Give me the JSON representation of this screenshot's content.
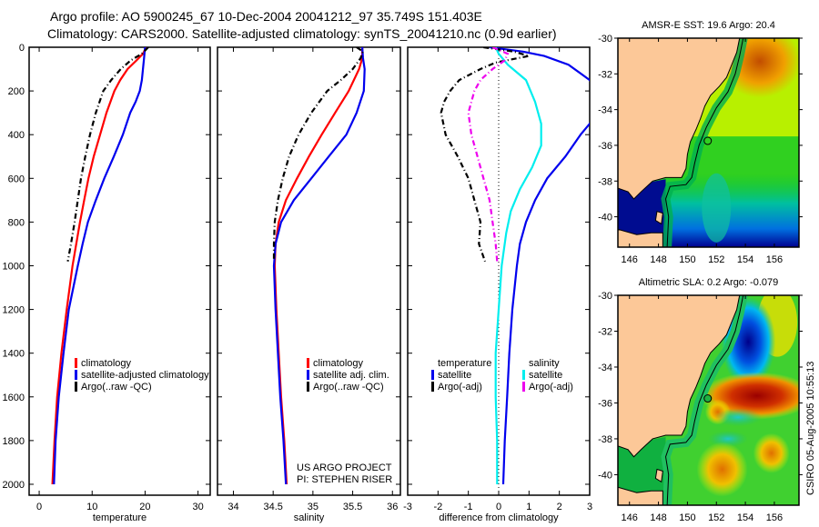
{
  "header": {
    "line1": "Argo profile: AO 5900245_67 10-Dec-2004 20041212_97 35.749S 151.403E",
    "line2": "Climatology: CARS2000. Satellite-adjusted climatology: synTS_20041210.nc (0.9d earlier)"
  },
  "footer_stamp": "CSIRO 05-Aug-2005 10:55:13",
  "colors": {
    "climatology": "#ff0000",
    "satellite": "#0000ee",
    "argo": "#000000",
    "salinity_satellite": "#00eeee",
    "salinity_argo": "#ee00ee"
  },
  "chart_data": [
    {
      "type": "line",
      "id": "temperature",
      "xlabel": "temperature",
      "ylabel": "",
      "xlim": [
        -1.9,
        32.3
      ],
      "ylim": [
        2050,
        0
      ],
      "xticks": [
        0,
        10,
        20,
        30
      ],
      "yticks": [
        0,
        200,
        400,
        600,
        800,
        1000,
        1200,
        1400,
        1600,
        1800,
        2000
      ],
      "legend": [
        "climatology",
        "satellite-adjusted climatology",
        "Argo(..raw -QC)"
      ],
      "series": [
        {
          "name": "climatology",
          "color": "#ff0000",
          "style": "solid",
          "depth": [
            0,
            30,
            60,
            100,
            150,
            200,
            300,
            400,
            500,
            600,
            700,
            800,
            900,
            1000,
            1200,
            1400,
            1600,
            1800,
            2000
          ],
          "values": [
            20.2,
            19.6,
            18.4,
            16.7,
            15.3,
            14.2,
            12.7,
            11.5,
            10.3,
            9.3,
            8.5,
            7.7,
            7.0,
            6.3,
            5.2,
            4.2,
            3.4,
            2.9,
            2.5
          ]
        },
        {
          "name": "satellite-adjusted climatology",
          "color": "#0000ee",
          "style": "solid",
          "depth": [
            0,
            50,
            100,
            150,
            200,
            250,
            300,
            400,
            500,
            600,
            700,
            800,
            900,
            1000,
            1200,
            1400,
            1600,
            1800,
            2000
          ],
          "values": [
            20.0,
            19.8,
            19.6,
            19.4,
            19.0,
            18.2,
            17.2,
            15.8,
            14.1,
            12.3,
            10.7,
            9.2,
            8.2,
            7.3,
            5.6,
            4.6,
            3.7,
            3.1,
            2.8
          ]
        },
        {
          "name": "Argo(..raw -QC)",
          "color": "#000000",
          "style": "dash",
          "depth": [
            0,
            30,
            60,
            100,
            150,
            200,
            300,
            400,
            500,
            600,
            700,
            800,
            900,
            980
          ],
          "values": [
            20.6,
            19.4,
            17.3,
            15.4,
            13.6,
            12.1,
            10.7,
            9.6,
            8.7,
            7.9,
            7.3,
            6.7,
            6.0,
            5.4
          ]
        }
      ]
    },
    {
      "type": "line",
      "id": "salinity",
      "xlabel": "salinity",
      "xlim": [
        33.8,
        36.1
      ],
      "ylim": [
        2050,
        0
      ],
      "xticks": [
        34,
        34.5,
        35,
        35.5,
        36
      ],
      "legend": [
        "climatology",
        "satellite adj. clim.",
        "Argo(..raw -QC)"
      ],
      "annotation": [
        "US ARGO PROJECT",
        "PI: STEPHEN RISER"
      ],
      "series": [
        {
          "name": "climatology",
          "color": "#ff0000",
          "style": "solid",
          "depth": [
            0,
            50,
            100,
            200,
            300,
            400,
            500,
            600,
            700,
            800,
            900,
            1000,
            1200,
            1400,
            1600,
            1800,
            2000
          ],
          "values": [
            35.62,
            35.62,
            35.58,
            35.45,
            35.28,
            35.11,
            34.95,
            34.8,
            34.66,
            34.57,
            34.53,
            34.52,
            34.54,
            34.57,
            34.6,
            34.64,
            34.67
          ]
        },
        {
          "name": "satellite adj. clim.",
          "color": "#0000ee",
          "style": "solid",
          "depth": [
            0,
            50,
            100,
            200,
            300,
            400,
            500,
            600,
            700,
            800,
            900,
            1000,
            1200,
            1400,
            1600,
            1800,
            2000
          ],
          "values": [
            35.62,
            35.63,
            35.65,
            35.64,
            35.55,
            35.42,
            35.2,
            34.98,
            34.76,
            34.6,
            34.53,
            34.51,
            34.53,
            34.56,
            34.59,
            34.63,
            34.66
          ]
        },
        {
          "name": "Argo(..raw -QC)",
          "color": "#000000",
          "style": "dash",
          "depth": [
            0,
            20,
            50,
            100,
            150,
            200,
            300,
            400,
            500,
            600,
            700,
            800,
            900,
            970
          ],
          "values": [
            35.55,
            35.63,
            35.6,
            35.5,
            35.35,
            35.18,
            34.98,
            34.82,
            34.7,
            34.62,
            34.56,
            34.52,
            34.51,
            34.51
          ]
        }
      ]
    },
    {
      "type": "line",
      "id": "difference",
      "xlabel": "difference from climatology",
      "xlim": [
        -3,
        3
      ],
      "ylim": [
        2050,
        0
      ],
      "xticks": [
        -3,
        -2,
        -1,
        0,
        1,
        2,
        3
      ],
      "zero_line": true,
      "legend": {
        "temperature": [
          "satellite",
          "Argo(-adj)"
        ],
        "salinity": [
          "satellite",
          "Argo(-adj)"
        ]
      },
      "legend_headers": [
        "temperature",
        "salinity"
      ],
      "series": [
        {
          "name": "temperature satellite",
          "color": "#0000ee",
          "style": "solid",
          "depth": [
            0,
            20,
            40,
            80,
            150,
            250,
            400,
            500,
            600,
            700,
            800,
            900,
            1000,
            1200,
            1400,
            1600,
            1800,
            2000
          ],
          "values": [
            -0.3,
            0.8,
            1.5,
            2.3,
            3.0,
            3.6,
            2.7,
            2.2,
            1.6,
            1.2,
            0.9,
            0.7,
            0.6,
            0.45,
            0.35,
            0.28,
            0.2,
            0.15
          ]
        },
        {
          "name": "temperature Argo(-adj)",
          "color": "#000000",
          "style": "dash",
          "depth": [
            0,
            20,
            40,
            70,
            100,
            150,
            200,
            250,
            300,
            400,
            500,
            600,
            700,
            800,
            900,
            980
          ],
          "values": [
            -0.5,
            0.5,
            1.0,
            -0.1,
            -0.6,
            -1.3,
            -1.6,
            -1.8,
            -1.9,
            -1.75,
            -1.35,
            -1.0,
            -0.8,
            -0.6,
            -0.65,
            -0.45
          ]
        },
        {
          "name": "salinity satellite",
          "color": "#00eeee",
          "style": "solid",
          "depth": [
            0,
            30,
            80,
            150,
            250,
            350,
            450,
            550,
            650,
            750,
            850,
            1000,
            1200,
            1400,
            1600,
            1800,
            2000
          ],
          "values": [
            -0.1,
            0.0,
            0.3,
            0.9,
            1.2,
            1.4,
            1.4,
            1.1,
            0.7,
            0.4,
            0.25,
            0.1,
            0.0,
            -0.1,
            -0.1,
            -0.05,
            -0.05
          ]
        },
        {
          "name": "salinity Argo(-adj)",
          "color": "#ee00ee",
          "style": "dash",
          "depth": [
            0,
            30,
            60,
            100,
            150,
            200,
            250,
            300,
            400,
            500,
            600,
            700,
            800,
            900,
            980
          ],
          "values": [
            -0.2,
            0.3,
            0.2,
            -0.2,
            -0.6,
            -0.8,
            -0.9,
            -1.0,
            -0.9,
            -0.7,
            -0.5,
            -0.3,
            -0.2,
            -0.1,
            -0.05
          ]
        }
      ]
    },
    {
      "type": "heatmap",
      "id": "sst-map",
      "title": "AMSR-E SST: 19.6 Argo: 20.4",
      "xlim": [
        145.2,
        157.7
      ],
      "ylim": [
        -41.7,
        -30
      ],
      "xticks": [
        146,
        148,
        150,
        152,
        154,
        156
      ],
      "yticks": [
        -30,
        -32,
        -34,
        -36,
        -38,
        -40
      ],
      "marker": {
        "lon": 151.403,
        "lat": -35.749
      }
    },
    {
      "type": "heatmap",
      "id": "sla-map",
      "title": "Altimetric SLA: 0.2 Argo: -0.079",
      "xlim": [
        145.2,
        157.7
      ],
      "ylim": [
        -41.7,
        -30
      ],
      "xticks": [
        146,
        148,
        150,
        152,
        154,
        156
      ],
      "yticks": [
        -30,
        -32,
        -34,
        -36,
        -38,
        -40
      ],
      "marker": {
        "lon": 151.403,
        "lat": -35.749
      }
    }
  ]
}
